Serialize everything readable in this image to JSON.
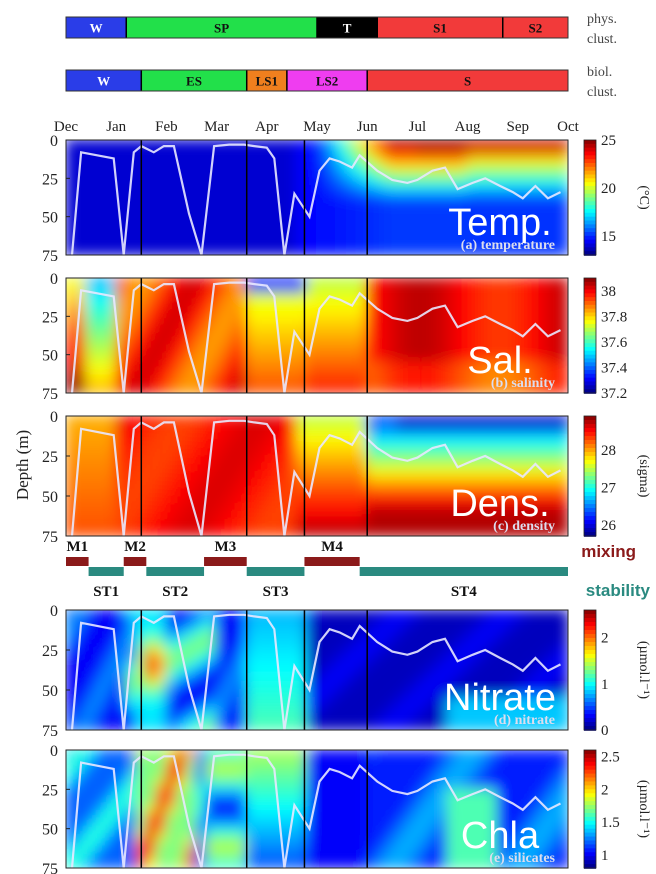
{
  "months": [
    "Dec",
    "Jan",
    "Feb",
    "Mar",
    "Apr",
    "May",
    "Jun",
    "Jul",
    "Aug",
    "Sep",
    "Oct"
  ],
  "phys_bar": {
    "label_line1": "phys.",
    "label_line2": "clust.",
    "segments": [
      {
        "label": "W",
        "color": "#2a3de8",
        "from": 0,
        "to": 1.2
      },
      {
        "label": "SP",
        "color": "#22e04a",
        "from": 1.2,
        "to": 5.0
      },
      {
        "label": "T",
        "color": "#000000",
        "from": 5.0,
        "to": 6.2
      },
      {
        "label": "S1",
        "color": "#f23a3a",
        "from": 6.2,
        "to": 8.7
      },
      {
        "label": "S2",
        "color": "#f23a3a",
        "from": 8.7,
        "to": 10
      }
    ]
  },
  "biol_bar": {
    "label_line1": "biol.",
    "label_line2": "clust.",
    "segments": [
      {
        "label": "W",
        "color": "#2a3de8",
        "from": 0,
        "to": 1.5
      },
      {
        "label": "ES",
        "color": "#22e04a",
        "from": 1.5,
        "to": 3.6
      },
      {
        "label": "LS1",
        "color": "#f07f1e",
        "from": 3.6,
        "to": 4.4
      },
      {
        "label": "LS2",
        "color": "#ef3df0",
        "from": 4.4,
        "to": 6.0
      },
      {
        "label": "S",
        "color": "#f23a3a",
        "from": 6.0,
        "to": 10
      }
    ]
  },
  "y_axis_label": "Depth (m)",
  "depth_ticks": [
    "0",
    "25",
    "50",
    "75"
  ],
  "colors": {
    "mixing": "#8b1a1a",
    "stability": "#2a8a80",
    "mld": "#e8e8ff"
  },
  "periods": {
    "mixing_label": "mixing",
    "stability_label": "stability",
    "mixing": [
      {
        "label": "M1",
        "from": 0,
        "to": 0.45
      },
      {
        "label": "M2",
        "from": 1.15,
        "to": 1.6
      },
      {
        "label": "M3",
        "from": 2.75,
        "to": 3.6
      },
      {
        "label": "M4",
        "from": 4.75,
        "to": 5.85
      }
    ],
    "stability": [
      {
        "label": "ST1",
        "from": 0.45,
        "to": 1.15
      },
      {
        "label": "ST2",
        "from": 1.6,
        "to": 2.75
      },
      {
        "label": "ST3",
        "from": 3.6,
        "to": 4.75
      },
      {
        "label": "ST4",
        "from": 5.85,
        "to": 10
      }
    ]
  },
  "chart_data": [
    {
      "type": "heatmap",
      "variable": "temperature",
      "panel_caption": "(a) temperature",
      "overlay_label": "Temp.",
      "colorbar_unit": "(°C)",
      "colorbar_ticks": [
        "25",
        "20",
        "15"
      ],
      "vmin": 13,
      "vmax": 25,
      "ylim": [
        0,
        75
      ],
      "xlim": [
        "Dec",
        "Oct"
      ]
    },
    {
      "type": "heatmap",
      "variable": "salinity",
      "panel_caption": "(b) salinity",
      "overlay_label": "Sal.",
      "colorbar_unit": "",
      "colorbar_ticks": [
        "38",
        "37.8",
        "37.6",
        "37.4",
        "37.2"
      ],
      "vmin": 37.2,
      "vmax": 38.1,
      "ylim": [
        0,
        75
      ],
      "xlim": [
        "Dec",
        "Oct"
      ]
    },
    {
      "type": "heatmap",
      "variable": "density",
      "panel_caption": "(c) density",
      "overlay_label": "Dens.",
      "colorbar_unit": "(sigma)",
      "colorbar_ticks": [
        "28",
        "27",
        "26"
      ],
      "vmin": 25.7,
      "vmax": 28.9,
      "ylim": [
        0,
        75
      ],
      "xlim": [
        "Dec",
        "Oct"
      ]
    },
    {
      "type": "heatmap",
      "variable": "nitrate",
      "panel_caption": "(d) nitrate",
      "overlay_label": "Nitrate",
      "colorbar_unit": "(µmol.l⁻¹)",
      "colorbar_ticks": [
        "2",
        "1",
        "0"
      ],
      "vmin": 0,
      "vmax": 2.6,
      "ylim": [
        0,
        75
      ],
      "xlim": [
        "Dec",
        "Oct"
      ]
    },
    {
      "type": "heatmap",
      "variable": "silicates",
      "panel_caption": "(e) silicates",
      "overlay_label": "Chla",
      "colorbar_unit": "(µmol.l⁻¹)",
      "colorbar_ticks": [
        "2.5",
        "2",
        "1.5",
        "1"
      ],
      "vmin": 0.8,
      "vmax": 2.6,
      "ylim": [
        0,
        75
      ],
      "xlim": [
        "Dec",
        "Oct"
      ]
    }
  ],
  "mixed_layer_depth": {
    "x": [
      0.12,
      0.3,
      0.95,
      1.15,
      1.35,
      1.5,
      1.75,
      1.95,
      2.15,
      2.45,
      2.7,
      2.95,
      3.25,
      3.55,
      3.75,
      4.0,
      4.15,
      4.35,
      4.55,
      4.85,
      5.05,
      5.25,
      5.45,
      5.7,
      5.85,
      6.2,
      6.5,
      6.8,
      7.0,
      7.3,
      7.55,
      7.8,
      8.1,
      8.35,
      8.65,
      8.9,
      9.1,
      9.35,
      9.6,
      9.85
    ],
    "y": [
      75,
      8,
      12,
      75,
      8,
      4,
      8,
      4,
      4,
      48,
      75,
      4,
      3,
      3,
      4,
      5,
      12,
      75,
      35,
      50,
      20,
      12,
      14,
      18,
      10,
      20,
      26,
      28,
      26,
      20,
      18,
      32,
      28,
      25,
      30,
      34,
      38,
      30,
      38,
      34
    ]
  }
}
